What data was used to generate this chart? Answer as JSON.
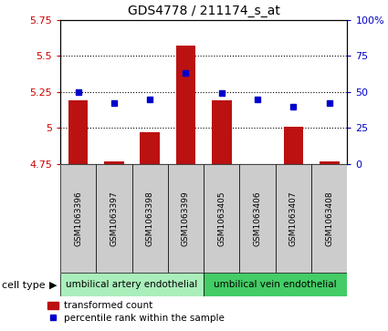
{
  "title": "GDS4778 / 211174_s_at",
  "samples": [
    "GSM1063396",
    "GSM1063397",
    "GSM1063398",
    "GSM1063399",
    "GSM1063405",
    "GSM1063406",
    "GSM1063407",
    "GSM1063408"
  ],
  "transformed_counts": [
    5.19,
    4.77,
    4.97,
    5.57,
    5.19,
    4.75,
    5.01,
    4.77
  ],
  "percentile_ranks": [
    50,
    42,
    45,
    63,
    49,
    45,
    40,
    42
  ],
  "ylim": [
    4.75,
    5.75
  ],
  "yticks": [
    4.75,
    5.0,
    5.25,
    5.5,
    5.75
  ],
  "ytick_labels": [
    "4.75",
    "5",
    "5.25",
    "5.5",
    "5.75"
  ],
  "y2lim": [
    0,
    100
  ],
  "y2ticks": [
    0,
    25,
    50,
    75,
    100
  ],
  "y2tick_labels": [
    "0",
    "25",
    "50",
    "75",
    "100%"
  ],
  "bar_color": "#bb1111",
  "dot_color": "#0000cc",
  "bar_bottom": 4.75,
  "cell_types": [
    {
      "label": "umbilical artery endothelial",
      "start": 0,
      "end": 3,
      "color": "#aaeebb"
    },
    {
      "label": "umbilical vein endothelial",
      "start": 4,
      "end": 7,
      "color": "#44cc66"
    }
  ],
  "cell_type_label": "cell type",
  "legend_bar_label": "transformed count",
  "legend_dot_label": "percentile rank within the sample",
  "grid_color": "#000000",
  "bg_color": "#ffffff",
  "left_tick_color": "#cc0000",
  "right_tick_color": "#0000cc",
  "box_color": "#cccccc"
}
